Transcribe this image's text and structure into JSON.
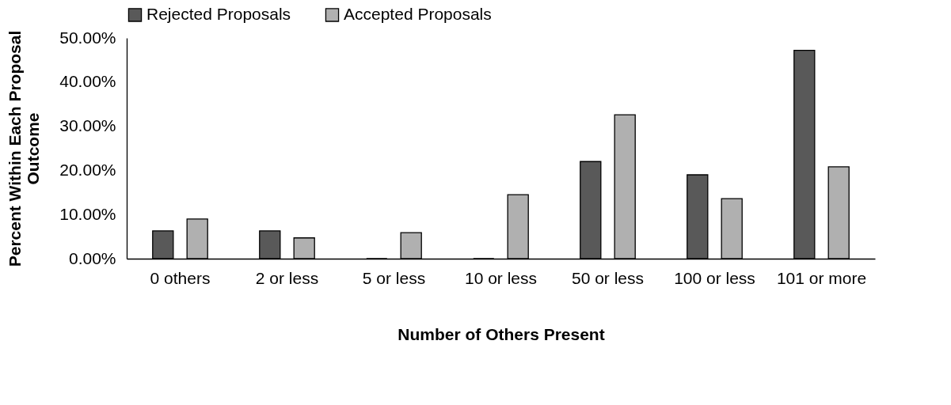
{
  "chart_data": {
    "type": "bar",
    "xlabel": "Number of Others Present",
    "ylabel": "Percent Within Each Proposal Outcome",
    "categories": [
      "0 others",
      "2 or less",
      "5 or less",
      "10 or less",
      "50 or less",
      "100 or less",
      "101 or more"
    ],
    "series": [
      {
        "name": "Rejected Proposals",
        "color": "#595959",
        "values": [
          6.3,
          6.3,
          0,
          0,
          22.0,
          19.0,
          47.2
        ]
      },
      {
        "name": "Accepted Proposals",
        "color": "#b0b0b0",
        "values": [
          9.0,
          4.7,
          5.9,
          14.5,
          32.6,
          13.6,
          20.8
        ]
      }
    ],
    "ylim": [
      0,
      50
    ],
    "yticks": [
      {
        "value": 0,
        "label": "0.00%"
      },
      {
        "value": 10,
        "label": "10.00%"
      },
      {
        "value": 20,
        "label": "20.00%"
      },
      {
        "value": 30,
        "label": "30.00%"
      },
      {
        "value": 40,
        "label": "40.00%"
      },
      {
        "value": 50,
        "label": "50.00%"
      }
    ],
    "grid": false,
    "legend": "top"
  }
}
